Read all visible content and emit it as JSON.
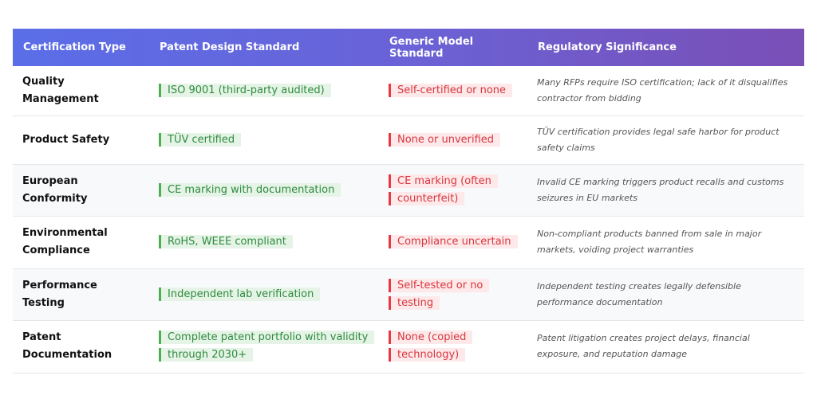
{
  "table": {
    "columns": [
      "Certification Type",
      "Patent Design Standard",
      "Generic Model Standard",
      "Regulatory Significance"
    ],
    "rows": [
      [
        "Quality Management",
        "ISO 9001 (third-party audited)",
        "Self-certified or none",
        "Many RFPs require ISO certification; lack of it disqualifies contractor from bidding"
      ],
      [
        "Product Safety",
        "TÜV certified",
        "None or unverified",
        "TÜV certification provides legal safe harbor for product safety claims"
      ],
      [
        "European Conformity",
        "CE marking with documentation",
        "CE marking (often counterfeit)",
        "Invalid CE marking triggers product recalls and customs seizures in EU markets"
      ],
      [
        "Environmental Compliance",
        "RoHS, WEEE compliant",
        "Compliance uncertain",
        "Non-compliant products banned from sale in major markets, voiding project warranties"
      ],
      [
        "Performance Testing",
        "Independent lab verification",
        "Self-tested or no testing",
        "Independent testing creates legally defensible performance documentation"
      ],
      [
        "Patent Documentation",
        "Complete patent portfolio with validity through 2030+",
        "None (copied technology)",
        "Patent litigation creates project delays, financial exposure, and reputation damage"
      ]
    ]
  }
}
